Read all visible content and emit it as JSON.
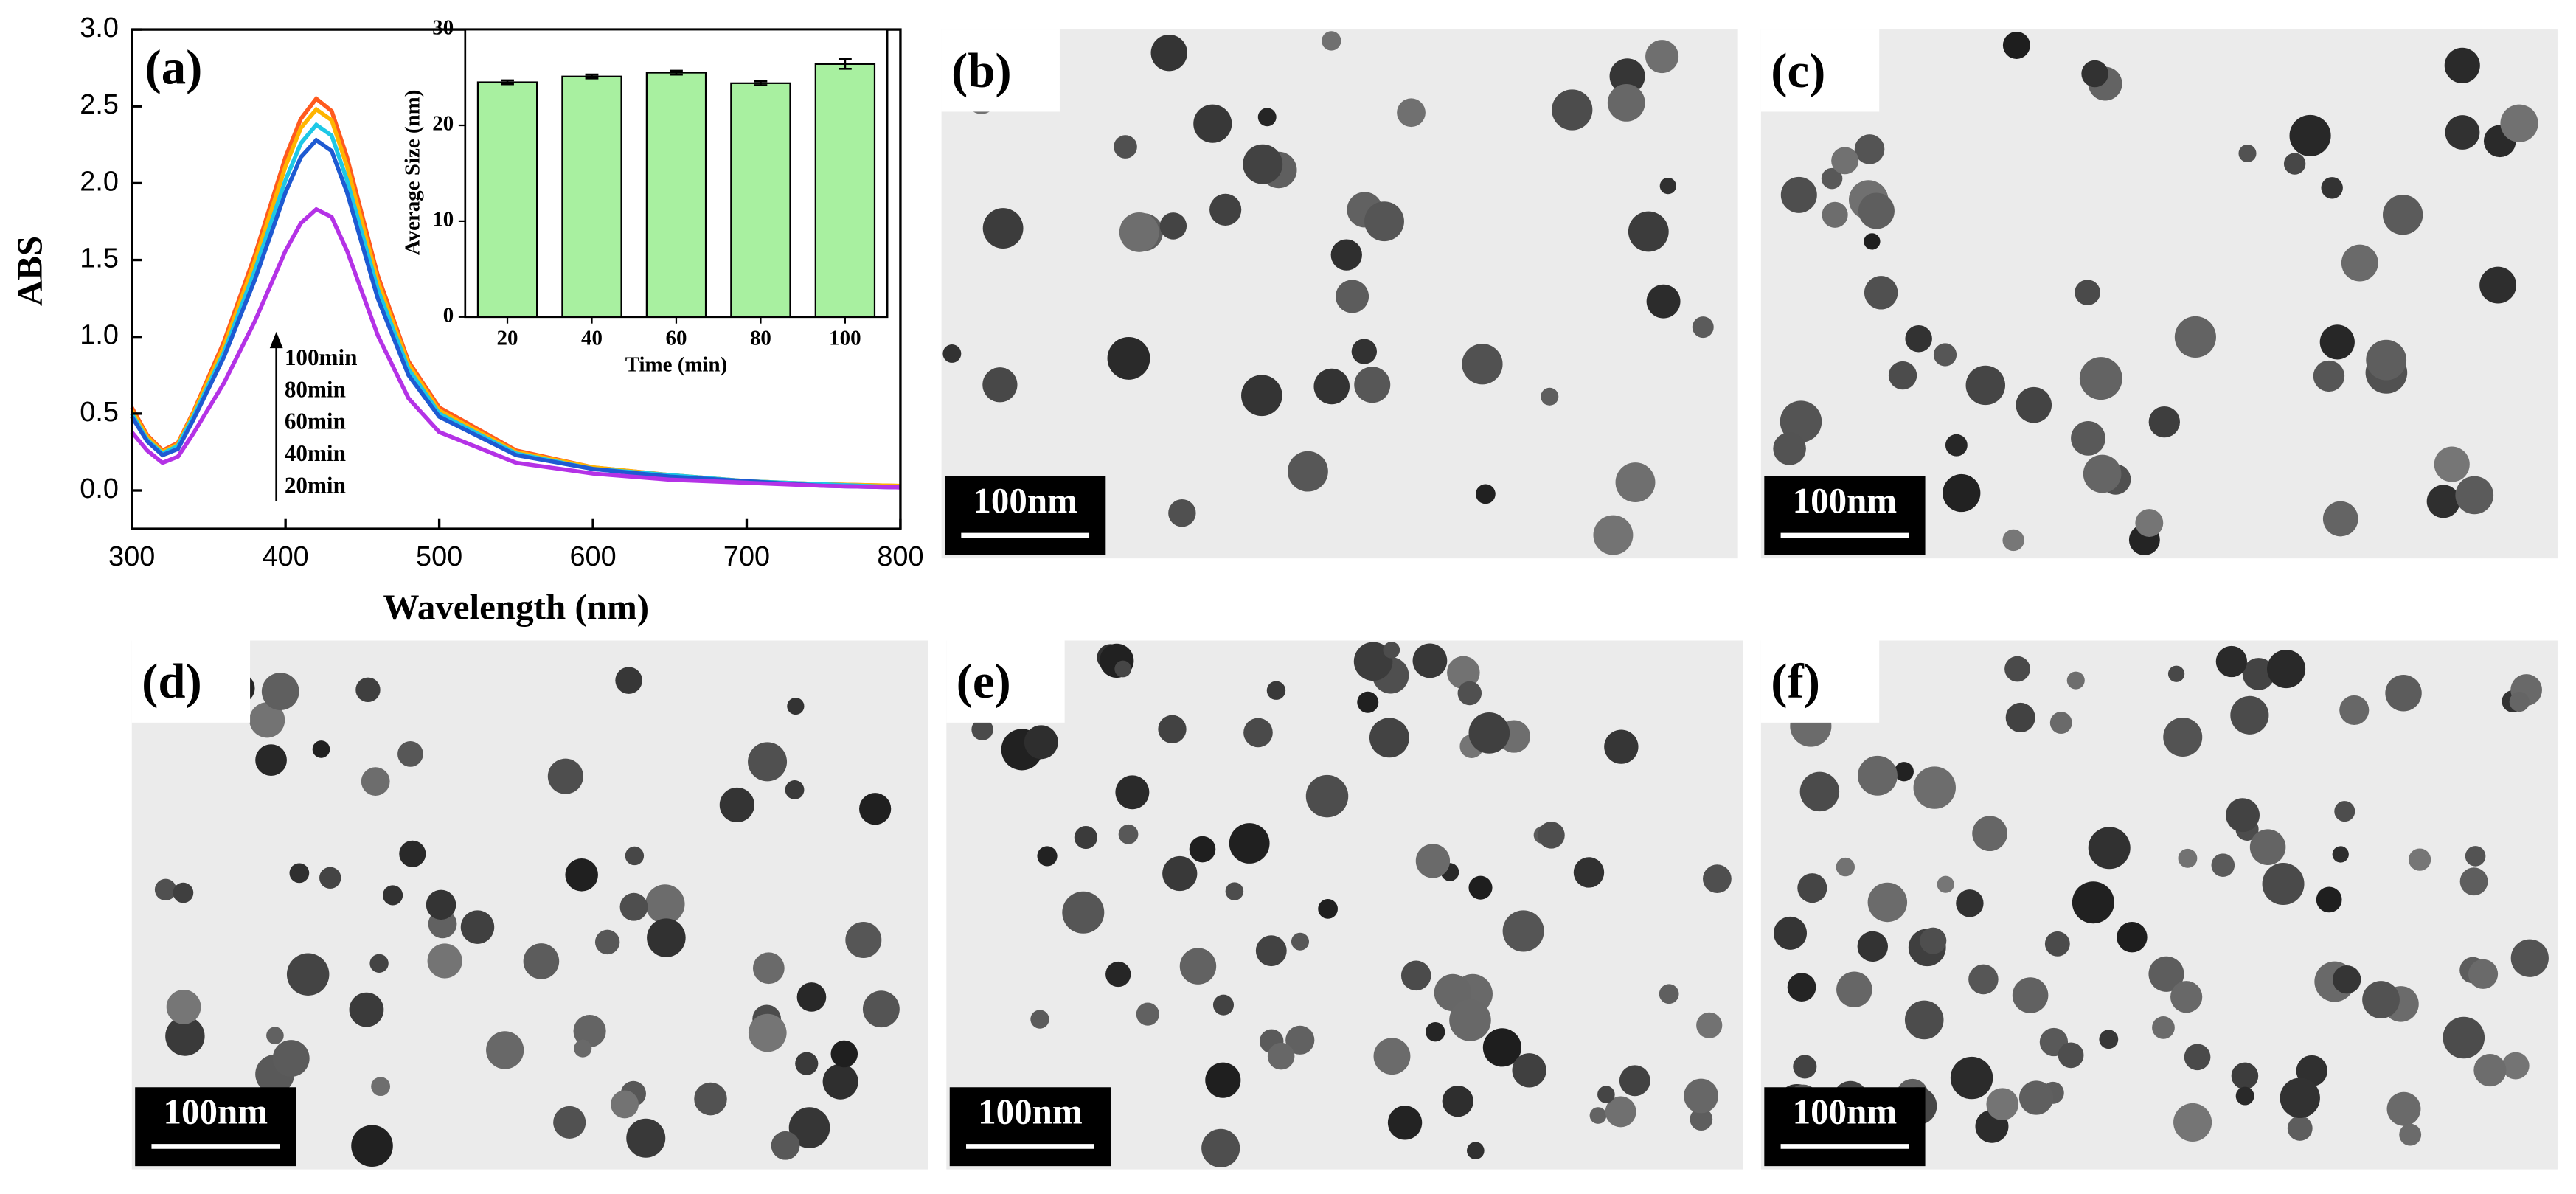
{
  "chart_data": [
    {
      "type": "line",
      "panel_label": "(a)",
      "ylabel": "ABS",
      "xlabel": "Wavelength (nm)",
      "xlim": [
        300,
        800
      ],
      "xticks": [
        300,
        400,
        500,
        600,
        700,
        800
      ],
      "ylim": [
        -0.25,
        3.0
      ],
      "yticks": [
        {
          "value": 0,
          "label": "0.0"
        },
        0.5,
        {
          "value": 1,
          "label": "1.0"
        },
        1.5,
        {
          "value": 2,
          "label": "2.0"
        },
        2.5,
        {
          "value": 3,
          "label": "3.0"
        }
      ],
      "x": [
        300,
        310,
        320,
        330,
        340,
        360,
        380,
        400,
        410,
        420,
        430,
        440,
        460,
        480,
        500,
        550,
        600,
        650,
        700,
        750,
        800
      ],
      "series": [
        {
          "name": "100min",
          "color": "#ff5a1e",
          "values": [
            0.54,
            0.36,
            0.26,
            0.31,
            0.51,
            0.97,
            1.53,
            2.17,
            2.42,
            2.55,
            2.47,
            2.17,
            1.4,
            0.84,
            0.54,
            0.26,
            0.15,
            0.1,
            0.06,
            0.04,
            0.03
          ]
        },
        {
          "name": "80min",
          "color": "#ffb400",
          "values": [
            0.52,
            0.35,
            0.25,
            0.3,
            0.5,
            0.94,
            1.49,
            2.11,
            2.36,
            2.48,
            2.41,
            2.11,
            1.36,
            0.82,
            0.52,
            0.25,
            0.15,
            0.1,
            0.06,
            0.04,
            0.03
          ]
        },
        {
          "name": "60min",
          "color": "#1ec8e6",
          "values": [
            0.5,
            0.33,
            0.24,
            0.29,
            0.48,
            0.9,
            1.43,
            2.02,
            2.26,
            2.38,
            2.31,
            2.02,
            1.31,
            0.79,
            0.5,
            0.24,
            0.14,
            0.1,
            0.06,
            0.04,
            0.02
          ]
        },
        {
          "name": "40min",
          "color": "#1e5ad2",
          "values": [
            0.48,
            0.32,
            0.23,
            0.27,
            0.46,
            0.87,
            1.37,
            1.94,
            2.17,
            2.28,
            2.21,
            1.94,
            1.25,
            0.75,
            0.48,
            0.23,
            0.14,
            0.09,
            0.06,
            0.03,
            0.02
          ]
        },
        {
          "name": "20min",
          "color": "#b432e6",
          "values": [
            0.38,
            0.26,
            0.18,
            0.22,
            0.37,
            0.7,
            1.1,
            1.56,
            1.74,
            1.83,
            1.78,
            1.56,
            1.01,
            0.6,
            0.38,
            0.18,
            0.11,
            0.07,
            0.05,
            0.03,
            0.02
          ]
        }
      ]
    },
    {
      "type": "bar",
      "ylabel": "Average Size (nm)",
      "xlabel": "Time (min)",
      "categories": [
        "20",
        "40",
        "60",
        "80",
        "100"
      ],
      "values": [
        24.5,
        25.1,
        25.5,
        24.4,
        26.4
      ],
      "errors": [
        0.2,
        0.2,
        0.2,
        0.2,
        0.5
      ],
      "color": "#a8f0a0",
      "ylim": [
        0,
        30
      ],
      "yticks": [
        0,
        10,
        20,
        30
      ]
    }
  ],
  "panels": [
    {
      "label": "(b)",
      "scale_bar": "100nm"
    },
    {
      "label": "(c)",
      "scale_bar": "100nm"
    },
    {
      "label": "(d)",
      "scale_bar": "100nm"
    },
    {
      "label": "(e)",
      "scale_bar": "100nm"
    },
    {
      "label": "(f)",
      "scale_bar": "100nm"
    }
  ]
}
